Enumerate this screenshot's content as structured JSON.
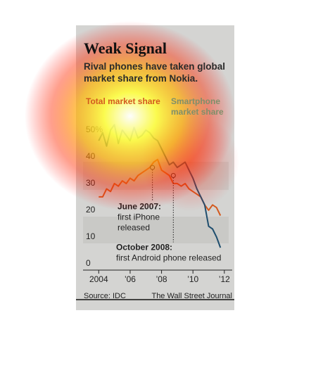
{
  "chart_data": {
    "type": "line",
    "title": "Weak Signal",
    "subtitle": "Rival phones have taken global market share from Nokia.",
    "x": [
      2004,
      2004.25,
      2004.5,
      2004.75,
      2005,
      2005.25,
      2005.5,
      2005.75,
      2006,
      2006.25,
      2006.5,
      2006.75,
      2007,
      2007.25,
      2007.5,
      2007.75,
      2008,
      2008.25,
      2008.5,
      2008.75,
      2009,
      2009.25,
      2009.5,
      2009.75,
      2010,
      2010.25,
      2010.5,
      2010.75,
      2011,
      2011.25,
      2011.5,
      2011.75
    ],
    "series": [
      {
        "name": "Total market share",
        "color": "#d35a1f",
        "values": [
          25,
          25,
          28,
          27,
          30,
          29,
          31,
          30,
          32,
          31,
          33,
          34,
          35,
          36,
          38,
          39,
          35,
          34,
          33,
          30,
          30,
          29,
          30,
          28,
          27,
          26,
          25,
          22,
          20,
          22,
          21,
          18
        ]
      },
      {
        "name": "Smartphone market share",
        "color": "#1f4e6e",
        "values": [
          46,
          49,
          44,
          50,
          52,
          45,
          50,
          48,
          46,
          51,
          47,
          48,
          50,
          49,
          47,
          46,
          43,
          40,
          37,
          38,
          36,
          37,
          38,
          35,
          32,
          28,
          25,
          22,
          14,
          13,
          10,
          6
        ]
      }
    ],
    "xlim": [
      2003,
      2012.5
    ],
    "xticks": [
      {
        "value": 2004,
        "label": "2004"
      },
      {
        "value": 2006,
        "label": "’06"
      },
      {
        "value": 2008,
        "label": "’08"
      },
      {
        "value": 2010,
        "label": "’10"
      },
      {
        "value": 2012,
        "label": "’12"
      }
    ],
    "ylim": [
      -2.4,
      52.6
    ],
    "yticks": [
      0,
      10,
      20,
      30,
      40,
      {
        "value": 50,
        "label": "50%"
      }
    ],
    "grid": false,
    "annotations": [
      {
        "x": 2007.42,
        "y": 36,
        "lines": [
          "June 2007:",
          "first iPhone",
          "released"
        ]
      },
      {
        "x": 2008.75,
        "y": 33,
        "lines": [
          "October 2008:",
          "first Android phone released"
        ]
      }
    ],
    "source": "Source: IDC",
    "credit": "The Wall Street Journal"
  }
}
